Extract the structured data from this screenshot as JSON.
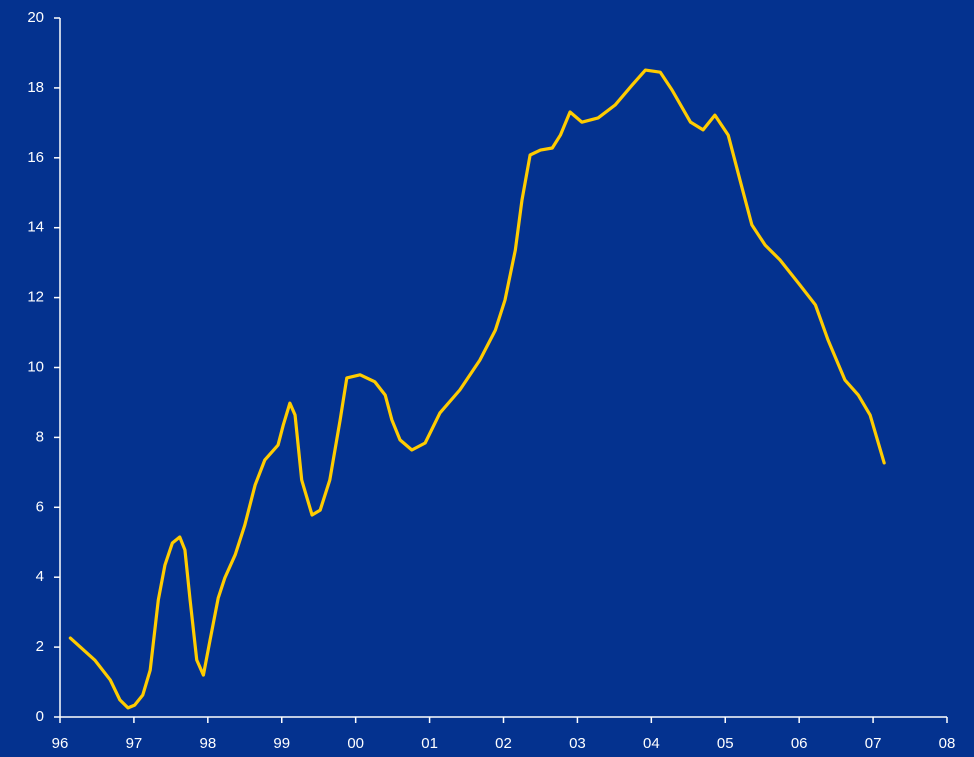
{
  "chart_data": {
    "type": "line",
    "x": [
      1996.14,
      1996.47,
      1996.68,
      1996.81,
      1996.92,
      1997.01,
      1997.12,
      1997.22,
      1997.33,
      1997.42,
      1997.52,
      1997.62,
      1997.69,
      1997.76,
      1997.85,
      1997.94,
      1998.03,
      1998.14,
      1998.23,
      1998.37,
      1998.5,
      1998.64,
      1998.77,
      1998.95,
      1999.02,
      1999.11,
      1999.18,
      1999.27,
      1999.41,
      1999.52,
      1999.65,
      1999.79,
      1999.88,
      2000.06,
      2000.26,
      2000.4,
      2000.49,
      2000.6,
      2000.76,
      2000.94,
      2001.14,
      2001.41,
      2001.68,
      2001.89,
      2002.02,
      2002.16,
      2002.25,
      2002.36,
      2002.5,
      2002.66,
      2002.77,
      2002.9,
      2003.06,
      2003.28,
      2003.51,
      2003.74,
      2003.92,
      2004.12,
      2004.28,
      2004.53,
      2004.7,
      2004.86,
      2005.04,
      2005.2,
      2005.36,
      2005.54,
      2005.74,
      2006.01,
      2006.22,
      2006.39,
      2006.62,
      2006.8,
      2006.96,
      2007.15
    ],
    "series": [
      {
        "color": "#ffcc00",
        "values": [
          2.26,
          1.63,
          1.06,
          0.49,
          0.26,
          0.34,
          0.63,
          1.34,
          3.35,
          4.35,
          4.98,
          5.15,
          4.78,
          3.35,
          1.63,
          1.2,
          2.2,
          3.4,
          3.98,
          4.64,
          5.49,
          6.64,
          7.35,
          7.78,
          8.35,
          8.98,
          8.64,
          6.78,
          5.78,
          5.92,
          6.78,
          8.5,
          9.7,
          9.79,
          9.59,
          9.21,
          8.5,
          7.93,
          7.64,
          7.84,
          8.7,
          9.36,
          10.21,
          11.07,
          11.93,
          13.36,
          14.79,
          16.08,
          16.22,
          16.28,
          16.65,
          17.31,
          17.02,
          17.14,
          17.51,
          18.08,
          18.51,
          18.45,
          17.94,
          17.02,
          16.8,
          17.22,
          16.65,
          15.36,
          14.08,
          13.5,
          13.08,
          12.36,
          11.79,
          10.79,
          9.64,
          9.21,
          8.64,
          7.27
        ]
      }
    ],
    "xlim": [
      1996,
      2008
    ],
    "xticks": [
      {
        "value": 1996,
        "label": "96"
      },
      {
        "value": 1997,
        "label": "97"
      },
      {
        "value": 1998,
        "label": "98"
      },
      {
        "value": 1999,
        "label": "99"
      },
      {
        "value": 2000,
        "label": "00"
      },
      {
        "value": 2001,
        "label": "01"
      },
      {
        "value": 2002,
        "label": "02"
      },
      {
        "value": 2003,
        "label": "03"
      },
      {
        "value": 2004,
        "label": "04"
      },
      {
        "value": 2005,
        "label": "05"
      },
      {
        "value": 2006,
        "label": "06"
      },
      {
        "value": 2007,
        "label": "07"
      },
      {
        "value": 2008,
        "label": "08"
      }
    ],
    "ylim": [
      0,
      20
    ],
    "yticks": [
      0,
      2,
      4,
      6,
      8,
      10,
      12,
      14,
      16,
      18,
      20
    ]
  }
}
